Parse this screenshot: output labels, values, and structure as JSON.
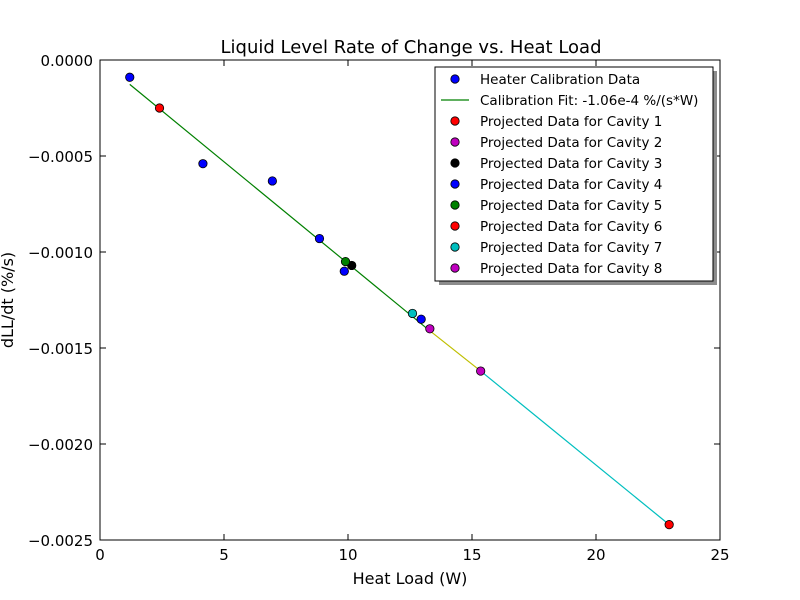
{
  "chart_data": {
    "type": "scatter",
    "title": "Liquid Level Rate of Change vs. Heat Load",
    "xlabel": "Heat Load (W)",
    "ylabel": "dLL/dt (%/s)",
    "xlim": [
      0,
      25
    ],
    "ylim": [
      -0.0025,
      0.0
    ],
    "x_ticks": [
      "0",
      "5",
      "10",
      "15",
      "20",
      "25"
    ],
    "y_ticks": [
      "0.0000",
      "−0.0005",
      "−0.0010",
      "−0.0015",
      "−0.0020",
      "−0.0025"
    ],
    "x_tick_values": [
      0,
      5,
      10,
      15,
      20,
      25
    ],
    "y_tick_values": [
      0,
      -0.0005,
      -0.001,
      -0.0015,
      -0.002,
      -0.0025
    ],
    "grid": false,
    "legend_position": "top-right",
    "series": [
      {
        "name": "Heater Calibration Data",
        "kind": "points",
        "color": "#0000ff",
        "x": [
          1.2,
          4.15,
          6.95,
          8.85,
          9.85,
          12.95
        ],
        "y": [
          -9e-05,
          -0.00054,
          -0.00063,
          -0.00093,
          -0.0011,
          -0.00135
        ]
      },
      {
        "name": "Calibration Fit:  -1.06e-4 %/(s*W)",
        "kind": "line",
        "color": "#008000",
        "slope": -0.000106,
        "x": [
          1.2,
          13.2
        ],
        "y": [
          -0.000127,
          -0.0014
        ]
      },
      {
        "name": "Projected Data for Cavity 1",
        "kind": "points",
        "color": "#ff0000",
        "x": [
          2.4
        ],
        "y": [
          -0.00025
        ]
      },
      {
        "name": "Projected Data for Cavity 2",
        "kind": "points",
        "color": "#bf00bf",
        "x": [
          13.3
        ],
        "y": [
          -0.0014
        ]
      },
      {
        "name": "Projected Data for Cavity 3",
        "kind": "points",
        "color": "#000000",
        "x": [
          10.15
        ],
        "y": [
          -0.00107
        ]
      },
      {
        "name": "Projected Data for Cavity 4",
        "kind": "points",
        "color": "#0000ff",
        "x": [],
        "y": []
      },
      {
        "name": "Projected Data for Cavity 5",
        "kind": "points",
        "color": "#008000",
        "x": [
          9.9
        ],
        "y": [
          -0.00105
        ]
      },
      {
        "name": "Projected Data for Cavity 6",
        "kind": "points",
        "color": "#ff0000",
        "x": [
          22.95
        ],
        "y": [
          -0.00242
        ]
      },
      {
        "name": "Projected Data for Cavity 7",
        "kind": "points",
        "color": "#00bfbf",
        "x": [
          12.6
        ],
        "y": [
          -0.00132
        ]
      },
      {
        "name": "Projected Data for Cavity 8",
        "kind": "points",
        "color": "#bf00bf",
        "x": [
          15.35
        ],
        "y": [
          -0.00162
        ]
      }
    ],
    "extra_lines": [
      {
        "color": "#bfbf00",
        "x": [
          13.2,
          15.35
        ],
        "y": [
          -0.0014,
          -0.00162
        ]
      },
      {
        "color": "#00bfbf",
        "x": [
          15.35,
          22.95
        ],
        "y": [
          -0.00162,
          -0.00242
        ]
      }
    ]
  }
}
